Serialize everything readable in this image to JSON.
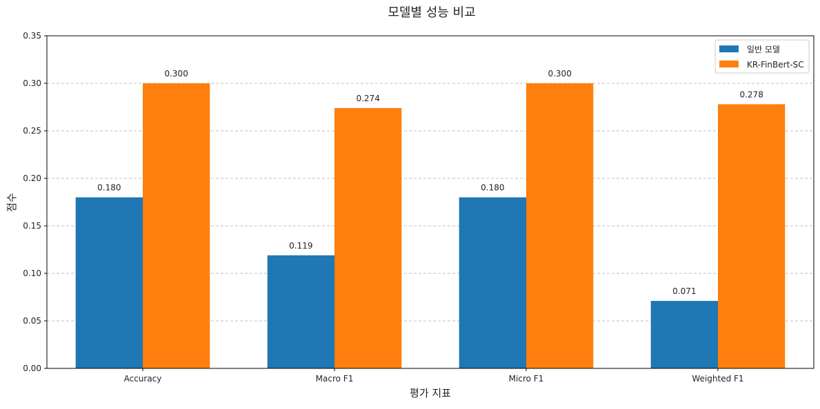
{
  "chart_data": {
    "type": "bar",
    "title": "모델별 성능 비교",
    "xlabel": "평가 지표",
    "ylabel": "점수",
    "categories": [
      "Accuracy",
      "Macro F1",
      "Micro F1",
      "Weighted F1"
    ],
    "series": [
      {
        "name": "일반 모델",
        "values": [
          0.18,
          0.119,
          0.18,
          0.071
        ],
        "labels": [
          "0.180",
          "0.119",
          "0.180",
          "0.071"
        ],
        "color": "#1f77b4"
      },
      {
        "name": "KR-FinBert-SC",
        "values": [
          0.3,
          0.274,
          0.3,
          0.278
        ],
        "labels": [
          "0.300",
          "0.274",
          "0.300",
          "0.278"
        ],
        "color": "#ff7f0e"
      }
    ],
    "ylim": [
      0,
      0.35
    ],
    "yticks": [
      0.0,
      0.05,
      0.1,
      0.15,
      0.2,
      0.25,
      0.3,
      0.35
    ],
    "ytick_labels": [
      "0.00",
      "0.05",
      "0.10",
      "0.15",
      "0.20",
      "0.25",
      "0.30",
      "0.35"
    ],
    "grid": "y-dashed",
    "legend_position": "top-right"
  }
}
